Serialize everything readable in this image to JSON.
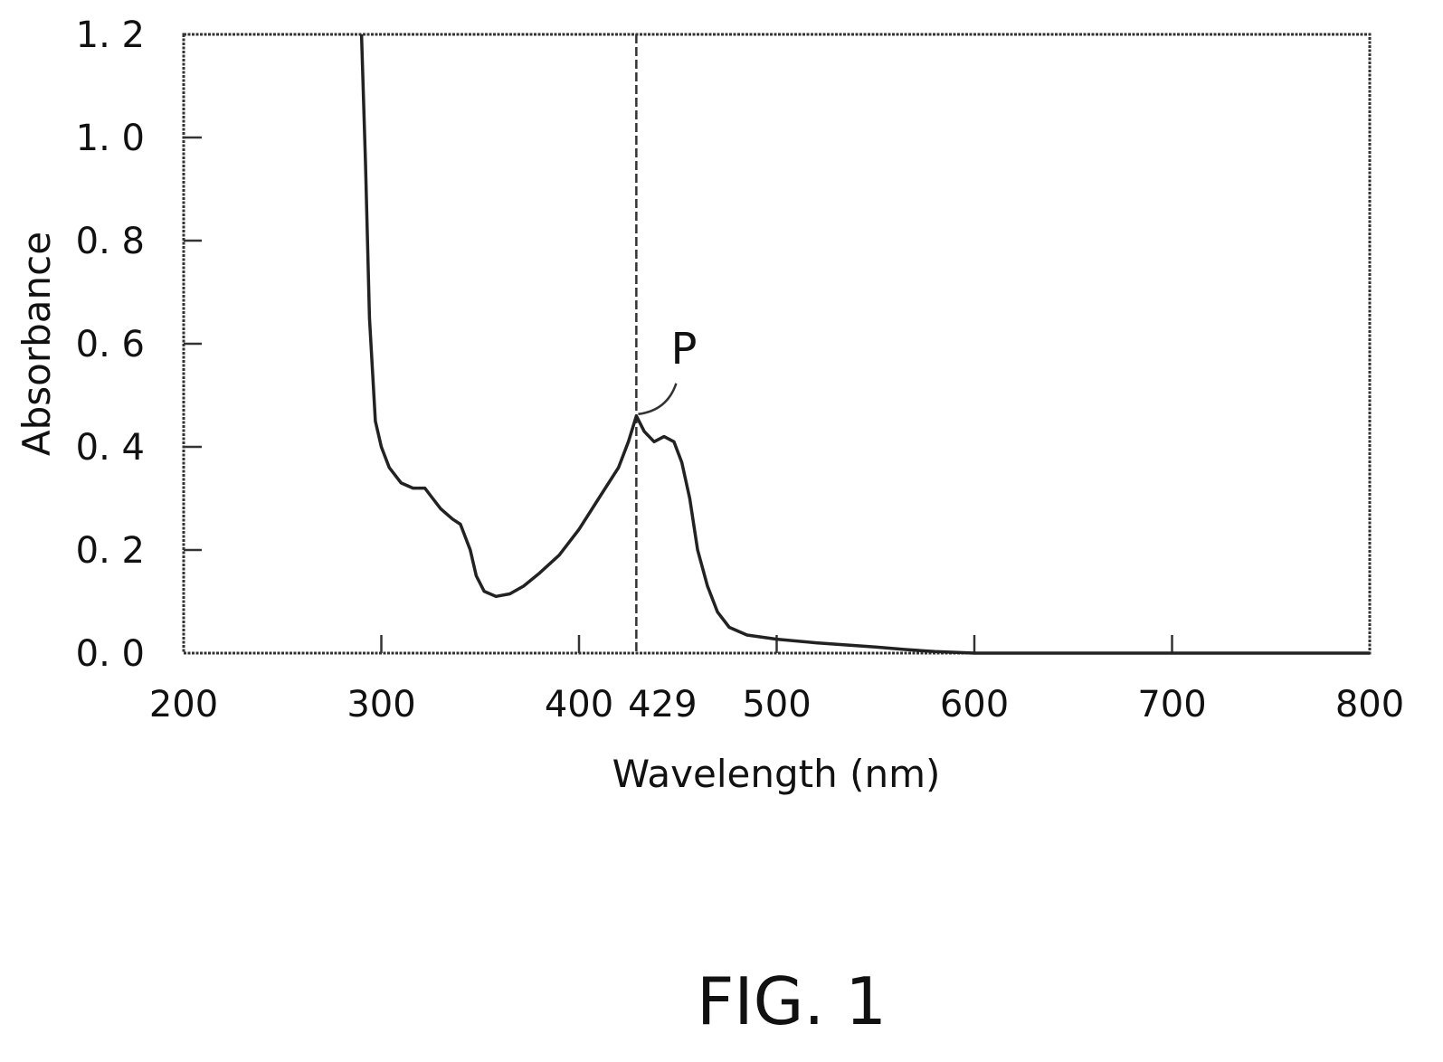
{
  "chart_data": {
    "type": "line",
    "xlabel": "Wavelength (nm)",
    "ylabel": "Absorbance",
    "xlim": [
      200,
      800
    ],
    "ylim": [
      0.0,
      1.2
    ],
    "grid": false,
    "x_ticks": [
      200,
      300,
      400,
      500,
      600,
      700,
      800
    ],
    "x_tick_labels": [
      "200",
      "300",
      "400",
      "500",
      "600",
      "700",
      "800"
    ],
    "y_ticks": [
      0.0,
      0.2,
      0.4,
      0.6,
      0.8,
      1.0,
      1.2
    ],
    "y_tick_labels": [
      "0. 0",
      "0. 2",
      "0. 4",
      "0. 6",
      "0. 8",
      "1. 0",
      "1. 2"
    ],
    "marker_line": {
      "x": 429,
      "label": "429"
    },
    "peak_annotation": {
      "label": "P",
      "x": 429,
      "y": 0.46
    },
    "series": [
      {
        "color": "#222222",
        "points": [
          [
            290,
            1.2
          ],
          [
            292,
            0.95
          ],
          [
            294,
            0.65
          ],
          [
            297,
            0.45
          ],
          [
            300,
            0.4
          ],
          [
            304,
            0.36
          ],
          [
            310,
            0.33
          ],
          [
            316,
            0.32
          ],
          [
            322,
            0.32
          ],
          [
            326,
            0.3
          ],
          [
            330,
            0.28
          ],
          [
            336,
            0.26
          ],
          [
            340,
            0.25
          ],
          [
            345,
            0.2
          ],
          [
            348,
            0.15
          ],
          [
            352,
            0.12
          ],
          [
            358,
            0.11
          ],
          [
            365,
            0.115
          ],
          [
            372,
            0.13
          ],
          [
            380,
            0.155
          ],
          [
            390,
            0.19
          ],
          [
            400,
            0.24
          ],
          [
            410,
            0.3
          ],
          [
            420,
            0.36
          ],
          [
            425,
            0.41
          ],
          [
            429,
            0.46
          ],
          [
            433,
            0.43
          ],
          [
            438,
            0.41
          ],
          [
            443,
            0.42
          ],
          [
            448,
            0.41
          ],
          [
            452,
            0.37
          ],
          [
            456,
            0.3
          ],
          [
            460,
            0.2
          ],
          [
            465,
            0.13
          ],
          [
            470,
            0.08
          ],
          [
            476,
            0.05
          ],
          [
            485,
            0.035
          ],
          [
            500,
            0.027
          ],
          [
            520,
            0.02
          ],
          [
            550,
            0.012
          ],
          [
            565,
            0.007
          ],
          [
            580,
            0.003
          ],
          [
            600,
            0.0
          ],
          [
            650,
            0.0
          ],
          [
            700,
            0.0
          ],
          [
            800,
            0.0
          ]
        ]
      }
    ]
  },
  "figure_label": "FIG. 1"
}
